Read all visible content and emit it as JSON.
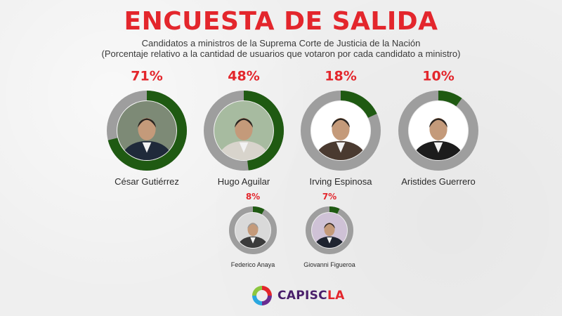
{
  "header": {
    "title": "ENCUESTA DE SALIDA",
    "subtitle_line1": "Candidatos a ministros de la Suprema Corte de Justicia de la Nación",
    "subtitle_line2": "(Porcentaje relativo a la cantidad de usuarios que votaron por cada candidato a ministro)"
  },
  "colors": {
    "title": "#e3262c",
    "ring_filled": "#1f5a12",
    "ring_remaining": "#9e9e9e",
    "percent_text": "#e3262c"
  },
  "chart_data": {
    "type": "pie",
    "subtype": "donut-rings",
    "unit": "%",
    "candidates": [
      {
        "name": "César Gutiérrez",
        "value": 71,
        "label": "71%"
      },
      {
        "name": "Hugo Aguilar",
        "value": 48,
        "label": "48%"
      },
      {
        "name": "Irving Espinosa",
        "value": 18,
        "label": "18%"
      },
      {
        "name": "Aristides Guerrero",
        "value": 10,
        "label": "10%"
      },
      {
        "name": "Federico Anaya",
        "value": 8,
        "label": "8%"
      },
      {
        "name": "Giovanni Figueroa",
        "value": 7,
        "label": "7%"
      }
    ]
  },
  "logo": {
    "text_main": "CAPISC",
    "text_accent": "LA"
  }
}
